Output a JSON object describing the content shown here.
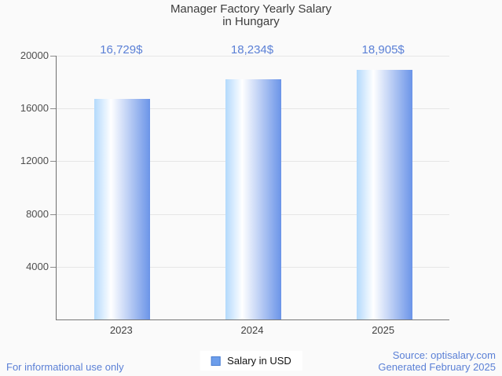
{
  "page": {
    "background": "#fafafa"
  },
  "title": {
    "line1": "Manager Factory Yearly Salary",
    "line2": "in Hungary"
  },
  "chart_data": {
    "type": "bar",
    "title": "Manager Factory Yearly Salary in Hungary",
    "categories": [
      "2023",
      "2024",
      "2025"
    ],
    "values": [
      16729,
      18234,
      18905
    ],
    "value_labels": [
      "16,729$",
      "18,234$",
      "18,905$"
    ],
    "series": [
      {
        "name": "Salary in USD",
        "values": [
          16729,
          18234,
          18905
        ]
      }
    ],
    "xlabel": "",
    "ylabel": "",
    "ylim": [
      0,
      20000
    ],
    "yticks": [
      20000,
      16000,
      12000,
      8000,
      4000
    ],
    "ytick_labels": [
      "20000",
      "16000",
      "12000",
      "8000",
      "4000"
    ],
    "grid": "horizontal",
    "legend_position": "bottom-center",
    "bar_gradient": [
      "#b3d9fc",
      "#ffffff",
      "#6b94e8"
    ]
  },
  "legend": {
    "label": "Salary in USD",
    "swatch_fill": "#6d9eeb",
    "swatch_border": "#4b7fd2"
  },
  "footer": {
    "disclaimer": "For informational use only",
    "source": "Source: optisalary.com",
    "generated": "Generated February 2025"
  },
  "colors": {
    "accent_blue": "#5b80d6",
    "title_text": "#3d3d3d",
    "axis_line": "#6f6f6f",
    "gridline": "#e6e6e6",
    "tick_label_text": "#4f4f4f",
    "legend_text": "#111111"
  }
}
